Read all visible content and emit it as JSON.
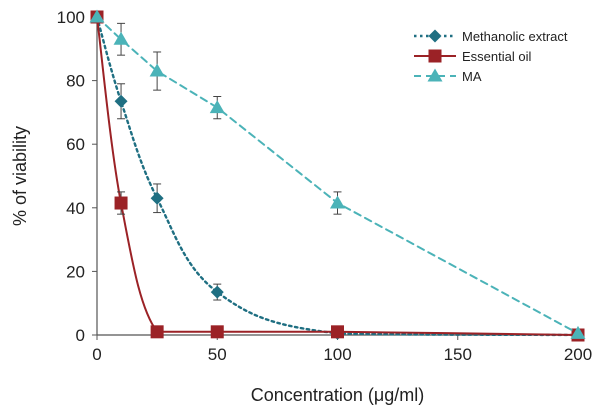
{
  "chart_data": {
    "type": "line",
    "xlabel": "Concentration (μg/ml)",
    "ylabel": "% of viability",
    "xlim": [
      0,
      200
    ],
    "ylim": [
      0,
      100
    ],
    "x_ticks": [
      "0",
      "50",
      "100",
      "150",
      "200"
    ],
    "y_ticks": [
      "0",
      "20",
      "40",
      "60",
      "80",
      "100"
    ],
    "grid": false,
    "legend_position": "top-right",
    "series": [
      {
        "name": "Methanolic extract",
        "marker": "diamond",
        "line_style": "dotted",
        "color": "#1f6f82",
        "x": [
          0,
          10,
          25,
          50,
          100,
          200
        ],
        "y": [
          100,
          73.5,
          43,
          13.5,
          0.5,
          0
        ],
        "error": [
          0,
          5.5,
          4.5,
          2.5,
          0,
          0
        ]
      },
      {
        "name": "Essential oil",
        "marker": "square",
        "line_style": "solid",
        "color": "#9b2226",
        "x": [
          0,
          10,
          25,
          50,
          100,
          200
        ],
        "y": [
          100,
          41.5,
          1,
          1,
          1,
          0
        ],
        "error": [
          0,
          3.5,
          0,
          0,
          0,
          0
        ]
      },
      {
        "name": "MA",
        "marker": "triangle",
        "line_style": "dashed",
        "color": "#4bb3b8",
        "x": [
          0,
          10,
          25,
          50,
          100,
          200
        ],
        "y": [
          100,
          93,
          83,
          71.5,
          41.5,
          0.5
        ],
        "error": [
          0,
          5,
          6,
          3.5,
          3.5,
          0
        ]
      }
    ]
  }
}
